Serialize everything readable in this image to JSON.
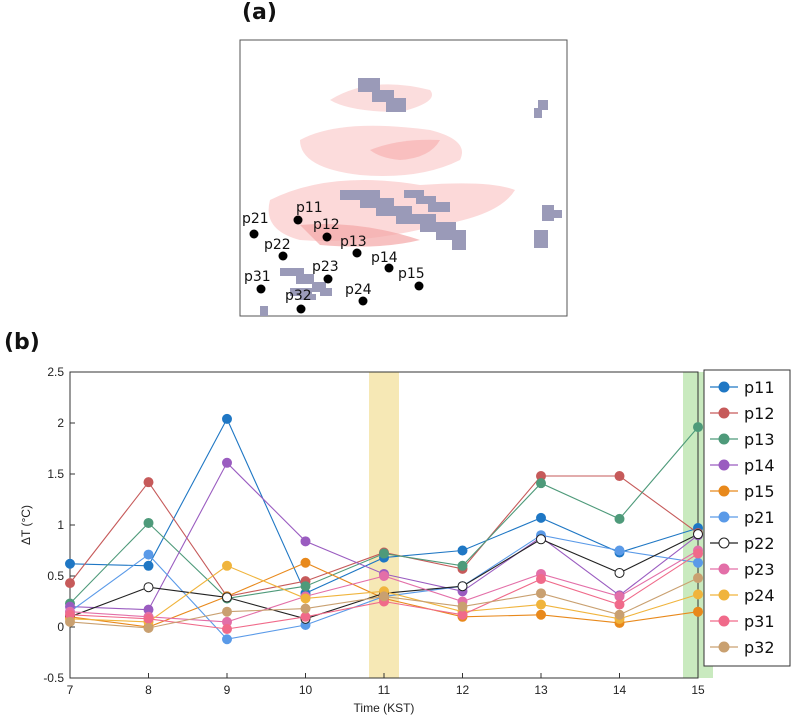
{
  "panel_a_label": "(a)",
  "panel_b_label": "(b)",
  "map": {
    "points": [
      {
        "name": "p11"
      },
      {
        "name": "p12"
      },
      {
        "name": "p13"
      },
      {
        "name": "p14"
      },
      {
        "name": "p15"
      },
      {
        "name": "p21"
      },
      {
        "name": "p22"
      },
      {
        "name": "p23"
      },
      {
        "name": "p24"
      },
      {
        "name": "p31"
      },
      {
        "name": "p32"
      }
    ]
  },
  "chart_data": {
    "type": "line",
    "title": "",
    "xlabel": "Time (KST)",
    "ylabel": "ΔT (°C)",
    "x": [
      7,
      8,
      9,
      10,
      11,
      12,
      13,
      14,
      15
    ],
    "xlim": [
      7,
      15
    ],
    "ylim": [
      -0.5,
      2.5
    ],
    "yticks": [
      "-0.5",
      "0",
      "0.5",
      "1",
      "1.5",
      "2",
      "2.5"
    ],
    "highlight_bands": [
      {
        "x": 11,
        "color": "#f5e4a8"
      },
      {
        "x": 15,
        "color": "#bfe6b4"
      }
    ],
    "legend_position": "right",
    "series": [
      {
        "name": "p11",
        "color": "#1f77c4",
        "marker": "filled",
        "values": [
          0.62,
          0.6,
          2.04,
          0.33,
          0.68,
          0.75,
          1.07,
          0.73,
          0.97
        ]
      },
      {
        "name": "p12",
        "color": "#c65a5a",
        "marker": "filled",
        "values": [
          0.43,
          1.42,
          0.3,
          0.45,
          0.73,
          0.57,
          1.48,
          1.48,
          0.92
        ]
      },
      {
        "name": "p13",
        "color": "#4e9a7a",
        "marker": "filled",
        "values": [
          0.23,
          1.02,
          0.28,
          0.4,
          0.72,
          0.6,
          1.41,
          1.06,
          1.96
        ]
      },
      {
        "name": "p14",
        "color": "#9a5cc0",
        "marker": "filled",
        "values": [
          0.2,
          0.17,
          1.61,
          0.84,
          0.52,
          0.35,
          0.88,
          0.31,
          0.9
        ]
      },
      {
        "name": "p15",
        "color": "#e8891c",
        "marker": "filled",
        "values": [
          0.1,
          0.0,
          0.3,
          0.63,
          0.28,
          0.1,
          0.12,
          0.04,
          0.15
        ]
      },
      {
        "name": "p21",
        "color": "#5a9ae8",
        "marker": "filled",
        "values": [
          0.15,
          0.71,
          -0.12,
          0.02,
          0.3,
          0.4,
          0.9,
          0.75,
          0.63
        ]
      },
      {
        "name": "p22",
        "color": "#222222",
        "marker": "open",
        "values": [
          0.1,
          0.39,
          0.29,
          0.08,
          0.33,
          0.4,
          0.86,
          0.53,
          0.91
        ]
      },
      {
        "name": "p23",
        "color": "#e36fa8",
        "marker": "filled",
        "values": [
          0.15,
          0.1,
          0.05,
          0.3,
          0.5,
          0.25,
          0.52,
          0.3,
          0.75
        ]
      },
      {
        "name": "p24",
        "color": "#f0b43c",
        "marker": "filled",
        "values": [
          0.08,
          0.05,
          0.6,
          0.28,
          0.35,
          0.15,
          0.22,
          0.08,
          0.32
        ]
      },
      {
        "name": "p31",
        "color": "#f06a8a",
        "marker": "filled",
        "values": [
          0.12,
          0.08,
          -0.02,
          0.1,
          0.25,
          0.12,
          0.47,
          0.22,
          0.72
        ]
      },
      {
        "name": "p32",
        "color": "#c9a070",
        "marker": "filled",
        "values": [
          0.05,
          -0.01,
          0.15,
          0.18,
          0.3,
          0.2,
          0.33,
          0.12,
          0.48
        ]
      }
    ]
  }
}
